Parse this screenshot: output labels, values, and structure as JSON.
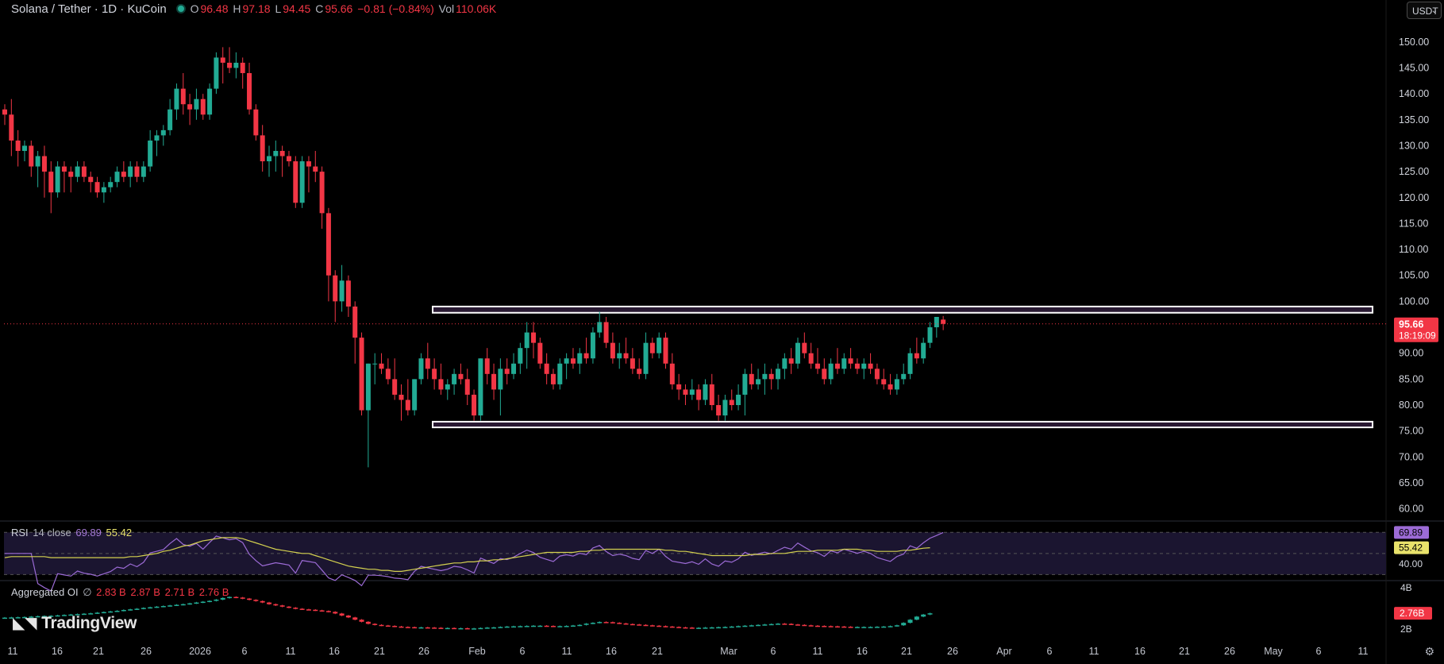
{
  "header": {
    "symbol_title": "Solana / Tether · 1D · KuCoin",
    "o_label": "O",
    "o_value": "96.48",
    "h_label": "H",
    "h_value": "97.18",
    "l_label": "L",
    "l_value": "94.45",
    "c_label": "C",
    "c_value": "95.66",
    "change": "−0.81 (−0.84%)",
    "vol_label": "Vol",
    "vol_value": "110.06K",
    "currency": "USDT"
  },
  "rsi_legend": {
    "name": "RSI",
    "params": "14 close",
    "rsi": "69.89",
    "ma": "55.42"
  },
  "oi_legend": {
    "name": "Aggregated OI",
    "symbol": "∅",
    "o": "2.83 B",
    "h": "2.87 B",
    "l": "2.71 B",
    "c": "2.76 B"
  },
  "brand": "TradingView",
  "colors": {
    "up": "#22ab94",
    "down": "#f23645",
    "background": "#000000",
    "rsi_line": "#9c6bd6",
    "rsi_ma": "#d4d14f",
    "zone_fill": "#2a1a33"
  },
  "chart_data": {
    "type": "candlestick",
    "price_axis_ticks": [
      "150.00",
      "145.00",
      "140.00",
      "135.00",
      "130.00",
      "125.00",
      "120.00",
      "115.00",
      "110.00",
      "105.00",
      "100.00",
      "95.00",
      "90.00",
      "85.00",
      "80.00",
      "75.00",
      "70.00",
      "65.00",
      "60.00"
    ],
    "price_range": [
      57.8,
      153.5
    ],
    "last_price_label": "95.66",
    "countdown_label": "18:19:09",
    "x_tick_labels": [
      "11",
      "16",
      "21",
      "26",
      "2026",
      "6",
      "11",
      "16",
      "21",
      "26",
      "Feb",
      "6",
      "11",
      "16",
      "21",
      "Mar",
      "6",
      "11",
      "16",
      "21",
      "26",
      "Apr",
      "6",
      "11",
      "16",
      "21",
      "26",
      "May",
      "6",
      "11"
    ],
    "zones": [
      {
        "low": 97.8,
        "high": 99.0
      },
      {
        "low": 75.7,
        "high": 76.8
      }
    ],
    "candles": [
      [
        137,
        138,
        134,
        136
      ],
      [
        136,
        139,
        128,
        131
      ],
      [
        131,
        133,
        126,
        129
      ],
      [
        129,
        131,
        127,
        130
      ],
      [
        130,
        131,
        124,
        126
      ],
      [
        126,
        129,
        122,
        128
      ],
      [
        128,
        130,
        120,
        125
      ],
      [
        125,
        127,
        117,
        121
      ],
      [
        121,
        127,
        120,
        126
      ],
      [
        126,
        127,
        121,
        125
      ],
      [
        125,
        126,
        121,
        124
      ],
      [
        124,
        127,
        123,
        126
      ],
      [
        126,
        127,
        123,
        124
      ],
      [
        124,
        125,
        121,
        123
      ],
      [
        123,
        124,
        120,
        121
      ],
      [
        121,
        123,
        119,
        122
      ],
      [
        122,
        124,
        121,
        123
      ],
      [
        123,
        126,
        122,
        125
      ],
      [
        125,
        127,
        123,
        124
      ],
      [
        124,
        127,
        122,
        126
      ],
      [
        126,
        127,
        123,
        124
      ],
      [
        124,
        127,
        123,
        126
      ],
      [
        126,
        133,
        125,
        131
      ],
      [
        131,
        133,
        128,
        132
      ],
      [
        132,
        134,
        130,
        133
      ],
      [
        133,
        139,
        132,
        137
      ],
      [
        137,
        142,
        135,
        141
      ],
      [
        141,
        144,
        136,
        138
      ],
      [
        138,
        140,
        134,
        137
      ],
      [
        137,
        141,
        135,
        139
      ],
      [
        139,
        140,
        135,
        136
      ],
      [
        136,
        142,
        135,
        141
      ],
      [
        141,
        148,
        140,
        147
      ],
      [
        147,
        149,
        142,
        146
      ],
      [
        146,
        149,
        144,
        145
      ],
      [
        145,
        148,
        143,
        146
      ],
      [
        146,
        147,
        141,
        144
      ],
      [
        144,
        146,
        136,
        137
      ],
      [
        137,
        138,
        131,
        132
      ],
      [
        132,
        134,
        125,
        127
      ],
      [
        127,
        130,
        124,
        128
      ],
      [
        128,
        131,
        125,
        129
      ],
      [
        129,
        130,
        124,
        128
      ],
      [
        128,
        129,
        126,
        127
      ],
      [
        127,
        128,
        118,
        119
      ],
      [
        119,
        128,
        118,
        127
      ],
      [
        127,
        128,
        121,
        126
      ],
      [
        126,
        129,
        123,
        125
      ],
      [
        125,
        126,
        114,
        117
      ],
      [
        117,
        118,
        100,
        105
      ],
      [
        105,
        106,
        96,
        100
      ],
      [
        100,
        107,
        98,
        104
      ],
      [
        104,
        105,
        97,
        99
      ],
      [
        99,
        100,
        88,
        93
      ],
      [
        93,
        94,
        78,
        79
      ],
      [
        79,
        88,
        68,
        88
      ],
      [
        88,
        90,
        84,
        88
      ],
      [
        88,
        90,
        86,
        87
      ],
      [
        87,
        89,
        84,
        85
      ],
      [
        85,
        89,
        81,
        82
      ],
      [
        82,
        84,
        77,
        81
      ],
      [
        81,
        85,
        78,
        79
      ],
      [
        79,
        85,
        78,
        85
      ],
      [
        85,
        90,
        84,
        89
      ],
      [
        89,
        92,
        85,
        87
      ],
      [
        87,
        89,
        83,
        85
      ],
      [
        85,
        88,
        82,
        83
      ],
      [
        83,
        85,
        81,
        84
      ],
      [
        84,
        87,
        82,
        86
      ],
      [
        86,
        88,
        84,
        85
      ],
      [
        85,
        87,
        80,
        82
      ],
      [
        82,
        83,
        77,
        78
      ],
      [
        78,
        89,
        77,
        89
      ],
      [
        89,
        91,
        84,
        86
      ],
      [
        86,
        88,
        81,
        83
      ],
      [
        83,
        89,
        78,
        87
      ],
      [
        87,
        89,
        84,
        86
      ],
      [
        86,
        90,
        85,
        88
      ],
      [
        88,
        92,
        86,
        91
      ],
      [
        91,
        96,
        87,
        94
      ],
      [
        94,
        96,
        89,
        92
      ],
      [
        92,
        93,
        87,
        88
      ],
      [
        88,
        90,
        84,
        86
      ],
      [
        86,
        87,
        83,
        84
      ],
      [
        84,
        89,
        83,
        88
      ],
      [
        88,
        90,
        85,
        89
      ],
      [
        89,
        91,
        87,
        88
      ],
      [
        88,
        91,
        86,
        90
      ],
      [
        90,
        93,
        88,
        89
      ],
      [
        89,
        95,
        88,
        94
      ],
      [
        94,
        98,
        93,
        96
      ],
      [
        96,
        97,
        91,
        92
      ],
      [
        92,
        94,
        88,
        89
      ],
      [
        89,
        92,
        87,
        90
      ],
      [
        90,
        93,
        88,
        89
      ],
      [
        89,
        91,
        86,
        87
      ],
      [
        87,
        89,
        85,
        86
      ],
      [
        86,
        94,
        85,
        92
      ],
      [
        92,
        93,
        89,
        90
      ],
      [
        90,
        94,
        89,
        93
      ],
      [
        93,
        94,
        87,
        88
      ],
      [
        88,
        90,
        83,
        84
      ],
      [
        84,
        86,
        81,
        83
      ],
      [
        83,
        84,
        80,
        82
      ],
      [
        82,
        85,
        81,
        83
      ],
      [
        83,
        84,
        79,
        81
      ],
      [
        81,
        85,
        80,
        84
      ],
      [
        84,
        86,
        79,
        80
      ],
      [
        80,
        82,
        77,
        78
      ],
      [
        78,
        82,
        77,
        81
      ],
      [
        81,
        83,
        79,
        80
      ],
      [
        80,
        84,
        79,
        82
      ],
      [
        82,
        87,
        78,
        86
      ],
      [
        86,
        88,
        83,
        84
      ],
      [
        84,
        87,
        83,
        85
      ],
      [
        85,
        88,
        82,
        86
      ],
      [
        86,
        87,
        83,
        85
      ],
      [
        85,
        88,
        83,
        87
      ],
      [
        87,
        90,
        85,
        89
      ],
      [
        89,
        91,
        86,
        88
      ],
      [
        88,
        93,
        87,
        92
      ],
      [
        92,
        94,
        89,
        90
      ],
      [
        90,
        92,
        87,
        88
      ],
      [
        88,
        91,
        86,
        87
      ],
      [
        87,
        89,
        84,
        85
      ],
      [
        85,
        89,
        84,
        88
      ],
      [
        88,
        91,
        86,
        87
      ],
      [
        87,
        90,
        86,
        89
      ],
      [
        89,
        91,
        87,
        88
      ],
      [
        88,
        89,
        86,
        87
      ],
      [
        87,
        89,
        85,
        88
      ],
      [
        88,
        90,
        86,
        87
      ],
      [
        87,
        88,
        84,
        85
      ],
      [
        85,
        87,
        83,
        84
      ],
      [
        84,
        86,
        82,
        83
      ],
      [
        83,
        86,
        82,
        85
      ],
      [
        85,
        88,
        84,
        86
      ],
      [
        86,
        91,
        85,
        90
      ],
      [
        90,
        93,
        88,
        89
      ],
      [
        89,
        93,
        88,
        92
      ],
      [
        92,
        96,
        91,
        95
      ],
      [
        95,
        97,
        93,
        97
      ],
      [
        96.48,
        97.18,
        94.45,
        95.66
      ]
    ],
    "rsi_axis_ticks": [
      "40.00"
    ],
    "rsi_range": [
      25,
      80
    ],
    "rsi_last": "69.89",
    "rsi_ma_last": "55.42",
    "rsi_ma": [
      46,
      47,
      47,
      47,
      47,
      47,
      47,
      46,
      46,
      46,
      46,
      46,
      46,
      46,
      46,
      46,
      46,
      46,
      46,
      47,
      47,
      48,
      49,
      50,
      52,
      53,
      55,
      57,
      58,
      60,
      62,
      63,
      64,
      65,
      65,
      65,
      64,
      62,
      60,
      58,
      56,
      54,
      53,
      52,
      51,
      50,
      50,
      48,
      46,
      44,
      42,
      40,
      38,
      37,
      36,
      35,
      35,
      34,
      34,
      33,
      33,
      34,
      35,
      36,
      37,
      38,
      39,
      40,
      41,
      41,
      42,
      42,
      43,
      43,
      44,
      44,
      45,
      46,
      47,
      48,
      49,
      50,
      51,
      51,
      51,
      51,
      51,
      52,
      52,
      53,
      53,
      54,
      54,
      54,
      54,
      54,
      54,
      54,
      54,
      54,
      53,
      53,
      52,
      52,
      51,
      50,
      49,
      48,
      48,
      48,
      48,
      48,
      48,
      49,
      49,
      49,
      50,
      50,
      50,
      51,
      52,
      52,
      52,
      53,
      53,
      53,
      53,
      54,
      54,
      54,
      53,
      53,
      52,
      52,
      52,
      52,
      53,
      53,
      54,
      55,
      55.42
    ],
    "oi_axis_ticks": [
      "4B",
      "2B"
    ],
    "oi_range": [
      1.5,
      4.3
    ],
    "oi_last": "2.76B",
    "oi": [
      2.55,
      2.56,
      2.57,
      2.58,
      2.6,
      2.62,
      2.63,
      2.64,
      2.66,
      2.68,
      2.7,
      2.72,
      2.74,
      2.76,
      2.79,
      2.82,
      2.85,
      2.88,
      2.92,
      2.95,
      2.98,
      3.02,
      3.05,
      3.08,
      3.11,
      3.14,
      3.17,
      3.2,
      3.24,
      3.28,
      3.32,
      3.36,
      3.42,
      3.5,
      3.55,
      3.52,
      3.47,
      3.41,
      3.35,
      3.28,
      3.2,
      3.14,
      3.08,
      3.03,
      2.98,
      2.95,
      2.93,
      2.9,
      2.87,
      2.83,
      2.75,
      2.65,
      2.56,
      2.45,
      2.35,
      2.25,
      2.2,
      2.17,
      2.15,
      2.12,
      2.1,
      2.09,
      2.08,
      2.08,
      2.07,
      2.06,
      2.05,
      2.05,
      2.04,
      2.04,
      2.03,
      2.03,
      2.05,
      2.07,
      2.08,
      2.1,
      2.12,
      2.13,
      2.14,
      2.15,
      2.16,
      2.16,
      2.15,
      2.14,
      2.14,
      2.15,
      2.17,
      2.2,
      2.26,
      2.3,
      2.34,
      2.33,
      2.3,
      2.27,
      2.24,
      2.22,
      2.2,
      2.18,
      2.16,
      2.14,
      2.12,
      2.1,
      2.08,
      2.07,
      2.06,
      2.06,
      2.07,
      2.08,
      2.09,
      2.1,
      2.12,
      2.14,
      2.16,
      2.18,
      2.2,
      2.22,
      2.24,
      2.26,
      2.25,
      2.22,
      2.2,
      2.18,
      2.16,
      2.15,
      2.14,
      2.13,
      2.12,
      2.11,
      2.1,
      2.1,
      2.1,
      2.1,
      2.11,
      2.12,
      2.14,
      2.18,
      2.3,
      2.45,
      2.6,
      2.7,
      2.76
    ]
  }
}
